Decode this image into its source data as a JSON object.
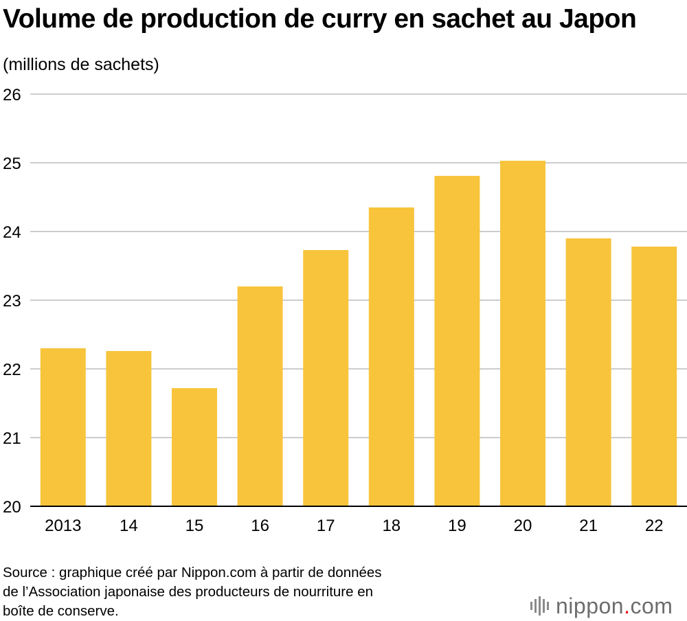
{
  "title": "Volume de production de curry en sachet au Japon",
  "unit_label": "(millions de sachets)",
  "source_lines": [
    "Source : graphique créé par Nippon.com à partir de données",
    "de l’Association japonaise des producteurs de nourriture en",
    "boîte de conserve."
  ],
  "logo": {
    "name": "nippon",
    "dot": ".",
    "suffix": "com",
    "icon": "nippon-bars-icon",
    "dot_color": "#e60012"
  },
  "colors": {
    "bar": "#f7c43c",
    "grid": "#cccccc",
    "axis": "#000000"
  },
  "chart_data": {
    "type": "bar",
    "title": "Volume de production de curry en sachet au Japon",
    "ylabel": "(millions de sachets)",
    "xlabel": "",
    "categories": [
      "2013",
      "14",
      "15",
      "16",
      "17",
      "18",
      "19",
      "20",
      "21",
      "22"
    ],
    "values": [
      22.3,
      22.26,
      21.72,
      23.2,
      23.73,
      24.35,
      24.81,
      25.03,
      23.9,
      23.78
    ],
    "ylim": [
      20,
      26
    ],
    "yticks": [
      20,
      21,
      22,
      23,
      24,
      25,
      26
    ],
    "grid": true,
    "legend": "none"
  }
}
